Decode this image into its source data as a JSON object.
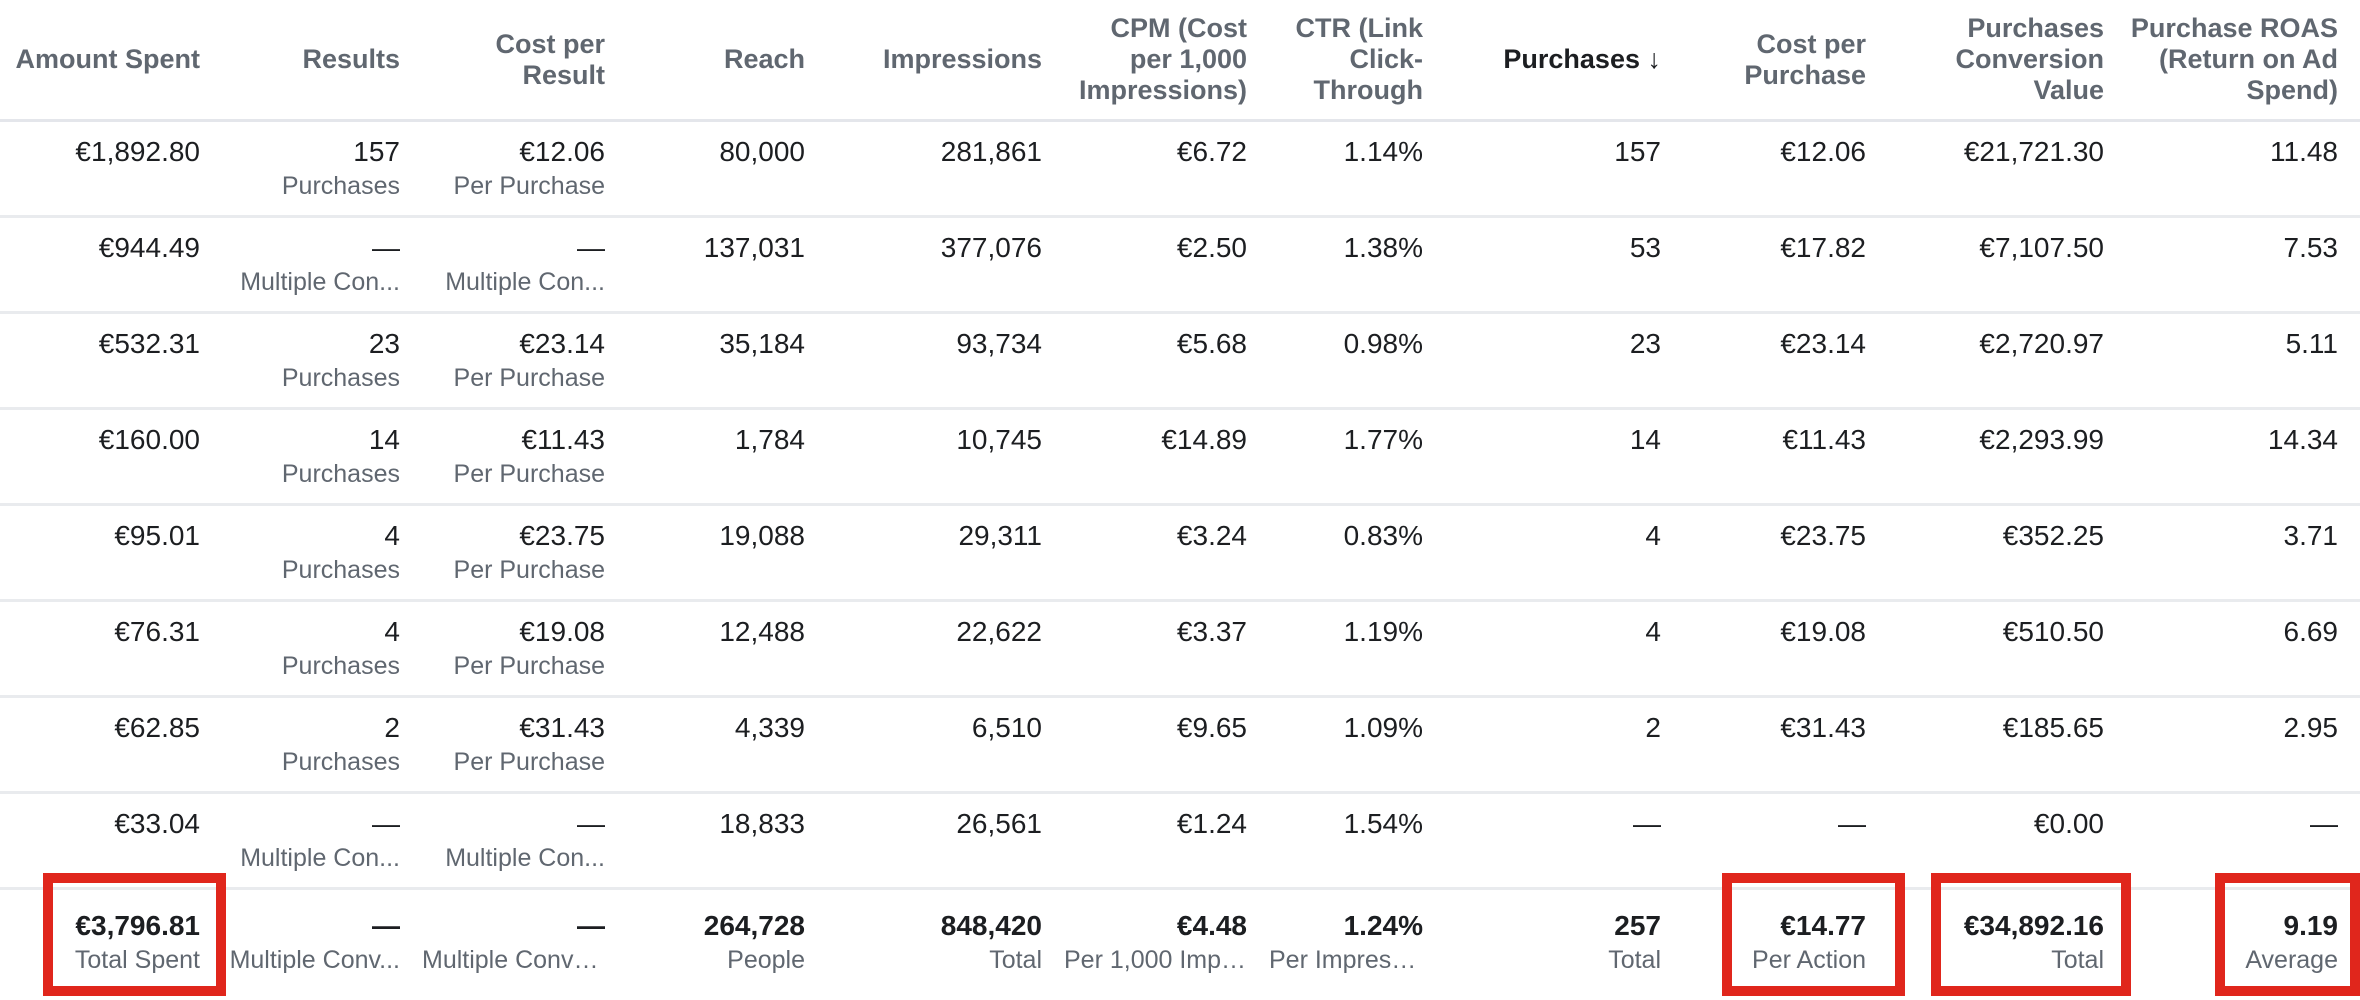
{
  "table": {
    "headers": [
      {
        "label": "Amount Spent",
        "name": "col-header-amount-spent"
      },
      {
        "label": "Results",
        "name": "col-header-results"
      },
      {
        "label": "Cost per Result",
        "name": "col-header-cost-per-result"
      },
      {
        "label": "Reach",
        "name": "col-header-reach"
      },
      {
        "label": "Impressions",
        "name": "col-header-impressions"
      },
      {
        "label": "CPM (Cost per 1,000 Impressions)",
        "name": "col-header-cpm"
      },
      {
        "label": "CTR (Link Click-Through",
        "name": "col-header-ctr"
      },
      {
        "label": "Purchases",
        "sort_icon": "↓",
        "name": "col-header-purchases"
      },
      {
        "label": "Cost per Purchase",
        "name": "col-header-cost-per-purchase"
      },
      {
        "label": "Purchases Conversion Value",
        "name": "col-header-purchases-conversion-value"
      },
      {
        "label": "Purchase ROAS (Return on Ad Spend)",
        "name": "col-header-purchase-roas"
      }
    ],
    "sorted_column": "Purchases",
    "sort_direction": "descending",
    "rows": [
      {
        "amount_spent": "€1,892.80",
        "results": "157",
        "results_sub": "Purchases",
        "cost_per_result": "€12.06",
        "cost_per_result_sub": "Per Purchase",
        "reach": "80,000",
        "impressions": "281,861",
        "cpm": "€6.72",
        "ctr": "1.14%",
        "purchases": "157",
        "cost_per_purchase": "€12.06",
        "conversion_value": "€21,721.30",
        "roas": "11.48"
      },
      {
        "amount_spent": "€944.49",
        "results": "—",
        "results_sub": "Multiple Con...",
        "cost_per_result": "—",
        "cost_per_result_sub": "Multiple Con...",
        "reach": "137,031",
        "impressions": "377,076",
        "cpm": "€2.50",
        "ctr": "1.38%",
        "purchases": "53",
        "cost_per_purchase": "€17.82",
        "conversion_value": "€7,107.50",
        "roas": "7.53"
      },
      {
        "amount_spent": "€532.31",
        "results": "23",
        "results_sub": "Purchases",
        "cost_per_result": "€23.14",
        "cost_per_result_sub": "Per Purchase",
        "reach": "35,184",
        "impressions": "93,734",
        "cpm": "€5.68",
        "ctr": "0.98%",
        "purchases": "23",
        "cost_per_purchase": "€23.14",
        "conversion_value": "€2,720.97",
        "roas": "5.11"
      },
      {
        "amount_spent": "€160.00",
        "results": "14",
        "results_sub": "Purchases",
        "cost_per_result": "€11.43",
        "cost_per_result_sub": "Per Purchase",
        "reach": "1,784",
        "impressions": "10,745",
        "cpm": "€14.89",
        "ctr": "1.77%",
        "purchases": "14",
        "cost_per_purchase": "€11.43",
        "conversion_value": "€2,293.99",
        "roas": "14.34"
      },
      {
        "amount_spent": "€95.01",
        "results": "4",
        "results_sub": "Purchases",
        "cost_per_result": "€23.75",
        "cost_per_result_sub": "Per Purchase",
        "reach": "19,088",
        "impressions": "29,311",
        "cpm": "€3.24",
        "ctr": "0.83%",
        "purchases": "4",
        "cost_per_purchase": "€23.75",
        "conversion_value": "€352.25",
        "roas": "3.71"
      },
      {
        "amount_spent": "€76.31",
        "results": "4",
        "results_sub": "Purchases",
        "cost_per_result": "€19.08",
        "cost_per_result_sub": "Per Purchase",
        "reach": "12,488",
        "impressions": "22,622",
        "cpm": "€3.37",
        "ctr": "1.19%",
        "purchases": "4",
        "cost_per_purchase": "€19.08",
        "conversion_value": "€510.50",
        "roas": "6.69"
      },
      {
        "amount_spent": "€62.85",
        "results": "2",
        "results_sub": "Purchases",
        "cost_per_result": "€31.43",
        "cost_per_result_sub": "Per Purchase",
        "reach": "4,339",
        "impressions": "6,510",
        "cpm": "€9.65",
        "ctr": "1.09%",
        "purchases": "2",
        "cost_per_purchase": "€31.43",
        "conversion_value": "€185.65",
        "roas": "2.95"
      },
      {
        "amount_spent": "€33.04",
        "results": "—",
        "results_sub": "Multiple Con...",
        "cost_per_result": "—",
        "cost_per_result_sub": "Multiple Con...",
        "reach": "18,833",
        "impressions": "26,561",
        "cpm": "€1.24",
        "ctr": "1.54%",
        "purchases": "—",
        "cost_per_purchase": "—",
        "conversion_value": "€0.00",
        "roas": "—"
      }
    ],
    "totals": {
      "amount_spent": "€3,796.81",
      "amount_spent_sub": "Total Spent",
      "results": "—",
      "results_sub": "Multiple Conv...",
      "cost_per_result": "—",
      "cost_per_result_sub": "Multiple Conve...",
      "reach": "264,728",
      "reach_sub": "People",
      "impressions": "848,420",
      "impressions_sub": "Total",
      "cpm": "€4.48",
      "cpm_sub": "Per 1,000 Impr...",
      "ctr": "1.24%",
      "ctr_sub": "Per Impressi...",
      "purchases": "257",
      "purchases_sub": "Total",
      "cost_per_purchase": "€14.77",
      "cost_per_purchase_sub": "Per Action",
      "conversion_value": "€34,892.16",
      "conversion_value_sub": "Total",
      "roas": "9.19",
      "roas_sub": "Average"
    }
  },
  "highlight": {
    "color": "#e0261c",
    "boxed_totals": [
      "Amount Spent",
      "Cost per Purchase",
      "Purchases Conversion Value",
      "Purchase ROAS (Return on Ad Spend)"
    ]
  },
  "colors": {
    "text_primary": "#1c1e21",
    "text_secondary": "#606770",
    "divider": "#e9ebee",
    "highlight_border": "#e0261c"
  }
}
